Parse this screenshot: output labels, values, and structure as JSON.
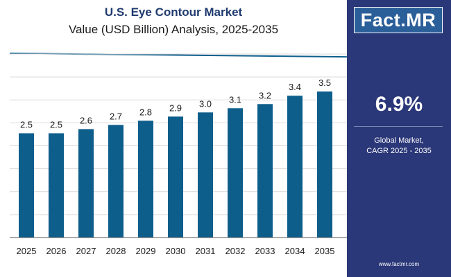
{
  "title": "U.S. Eye Contour Market",
  "subtitle": "Value (USD Billion) Analysis, 2025-2035",
  "side_panel": {
    "logo_left": "Fact.",
    "logo_right": "MR",
    "cagr_value": "6.9%",
    "cagr_label_line1": "Global Market,",
    "cagr_label_line2": "CAGR 2025 - 2035",
    "website": "www.factmr.com"
  },
  "colors": {
    "bar": "#0e5e8c",
    "title": "#1e3a6e",
    "panel": "#2a3778",
    "grid": "#d9d9d9"
  },
  "chart_data": {
    "type": "bar",
    "title": "U.S. Eye Contour Market",
    "subtitle": "Value (USD Billion) Analysis, 2025-2035",
    "xlabel": "",
    "ylabel": "",
    "categories": [
      "2025",
      "2026",
      "2027",
      "2028",
      "2029",
      "2030",
      "2031",
      "2032",
      "2033",
      "2034",
      "2035"
    ],
    "values": [
      2.5,
      2.5,
      2.6,
      2.7,
      2.8,
      2.9,
      3.0,
      3.1,
      3.2,
      3.4,
      3.5
    ],
    "value_labels": [
      "2.5",
      "2.5",
      "2.6",
      "2.7",
      "2.8",
      "2.9",
      "3.0",
      "3.1",
      "3.2",
      "3.4",
      "3.5"
    ],
    "ylim": [
      0,
      4.4
    ],
    "grid": true
  }
}
